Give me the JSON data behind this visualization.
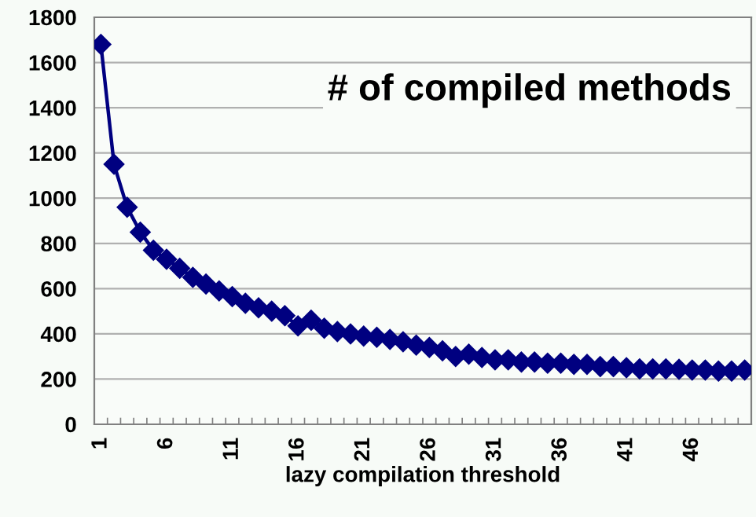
{
  "chart_data": {
    "type": "line",
    "title": "# of compiled methods",
    "xlabel": "lazy compilation threshold",
    "categories": [
      "1",
      null,
      null,
      null,
      null,
      "6",
      null,
      null,
      null,
      null,
      "11",
      null,
      null,
      null,
      null,
      "16",
      null,
      null,
      null,
      null,
      "21",
      null,
      null,
      null,
      null,
      "26",
      null,
      null,
      null,
      null,
      "31",
      null,
      null,
      null,
      null,
      "36",
      null,
      null,
      null,
      null,
      "41",
      null,
      null,
      null,
      null,
      "46",
      null,
      null,
      null,
      null
    ],
    "series": [
      {
        "color": "#000080",
        "values": [
          1680,
          1150,
          960,
          850,
          770,
          730,
          690,
          650,
          620,
          590,
          565,
          535,
          515,
          500,
          480,
          435,
          460,
          425,
          410,
          400,
          390,
          385,
          375,
          365,
          350,
          340,
          325,
          300,
          310,
          295,
          285,
          285,
          275,
          275,
          270,
          270,
          265,
          265,
          255,
          255,
          250,
          245,
          245,
          245,
          243,
          240,
          240,
          235,
          235,
          240
        ]
      }
    ],
    "ylim": [
      0,
      1800
    ],
    "yticks": [
      0,
      200,
      400,
      600,
      800,
      1000,
      1200,
      1400,
      1600,
      1800
    ],
    "grid": "y",
    "legend": false,
    "marker": "diamond",
    "line_style": "solid"
  }
}
